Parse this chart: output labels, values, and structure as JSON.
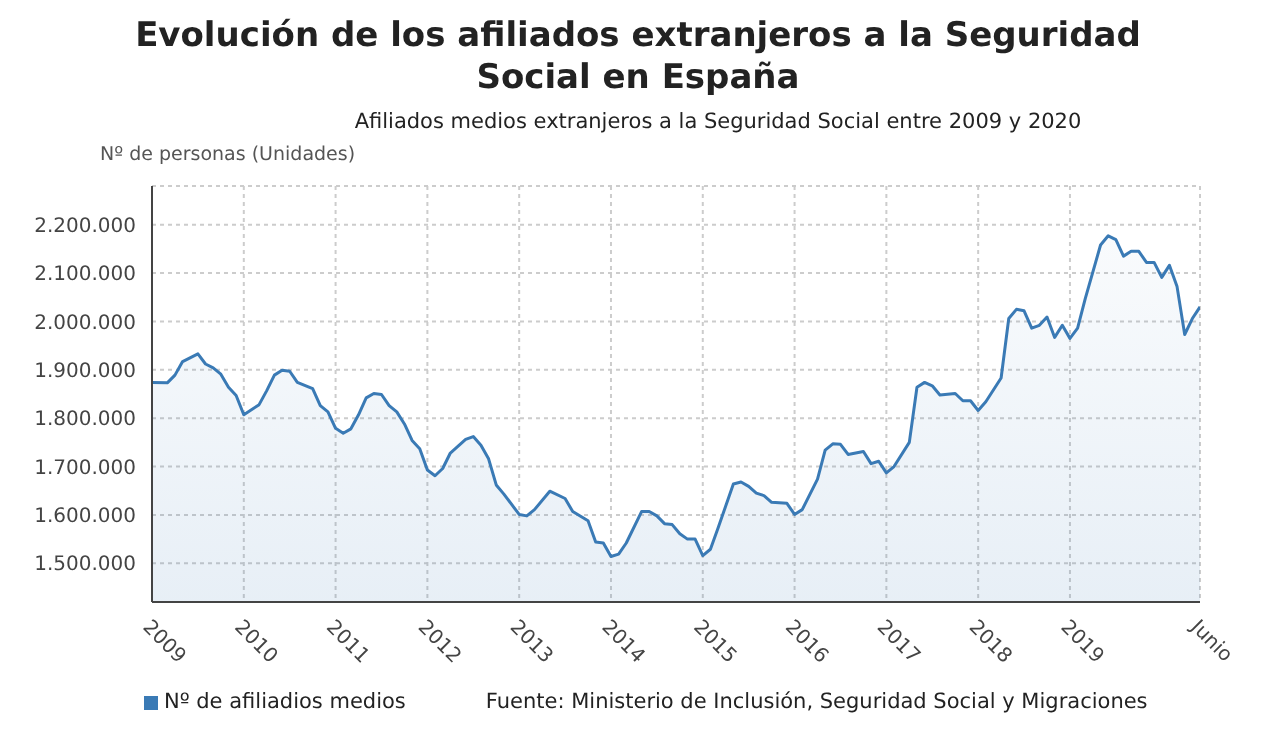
{
  "chart_data": {
    "type": "area",
    "title": "Evolución de los afiliados extranjeros a la Seguridad Social en España",
    "subtitle": "Afiliados medios extranjeros a la Seguridad Social entre 2009 y 2020",
    "ylabel": "Nº de personas (Unidades)",
    "annotations": [
      "Fuente: Ministerio de Inclusión, Seguridad Social y Migraciones"
    ],
    "xlim": [
      "2009-01",
      "2020-06"
    ],
    "xticks": [
      {
        "value": "2009",
        "label": "2009"
      },
      {
        "value": "2010",
        "label": "2010"
      },
      {
        "value": "2011",
        "label": "2011"
      },
      {
        "value": "2012",
        "label": "2012"
      },
      {
        "value": "2013",
        "label": "2013"
      },
      {
        "value": "2014",
        "label": "2014"
      },
      {
        "value": "2015",
        "label": "2015"
      },
      {
        "value": "2016",
        "label": "2016"
      },
      {
        "value": "2017",
        "label": "2017"
      },
      {
        "value": "2018",
        "label": "2018"
      },
      {
        "value": "2019",
        "label": "2019"
      },
      {
        "value": "2020-06",
        "label": "Junio"
      }
    ],
    "ylim": [
      1420000,
      2280000
    ],
    "yticks": [
      {
        "value": 1500000,
        "label": "1.500.000"
      },
      {
        "value": 1600000,
        "label": "1.600.000"
      },
      {
        "value": 1700000,
        "label": "1.700.000"
      },
      {
        "value": 1800000,
        "label": "1.800.000"
      },
      {
        "value": 1900000,
        "label": "1.900.000"
      },
      {
        "value": 2000000,
        "label": "2.000.000"
      },
      {
        "value": 2100000,
        "label": "2.100.000"
      },
      {
        "value": 2200000,
        "label": "2.200.000"
      }
    ],
    "grid": true,
    "legend": "bottom left",
    "marker": "none",
    "x": [
      "2009-01",
      "2009-03",
      "2009-04",
      "2009-05",
      "2009-07",
      "2009-08",
      "2009-09",
      "2009-10",
      "2009-11",
      "2009-12",
      "2010-01",
      "2010-03",
      "2010-04",
      "2010-05",
      "2010-06",
      "2010-07",
      "2010-08",
      "2010-10",
      "2010-11",
      "2010-12",
      "2011-01",
      "2011-02",
      "2011-03",
      "2011-04",
      "2011-05",
      "2011-06",
      "2011-07",
      "2011-08",
      "2011-09",
      "2011-10",
      "2011-11",
      "2011-12",
      "2012-01",
      "2012-02",
      "2012-03",
      "2012-04",
      "2012-06",
      "2012-07",
      "2012-08",
      "2012-09",
      "2012-10",
      "2012-11",
      "2013-01",
      "2013-02",
      "2013-03",
      "2013-05",
      "2013-07",
      "2013-08",
      "2013-10",
      "2013-11",
      "2013-12",
      "2014-01",
      "2014-02",
      "2014-03",
      "2014-05",
      "2014-06",
      "2014-07",
      "2014-08",
      "2014-09",
      "2014-10",
      "2014-11",
      "2014-12",
      "2015-01",
      "2015-02",
      "2015-03",
      "2015-05",
      "2015-06",
      "2015-07",
      "2015-08",
      "2015-09",
      "2015-10",
      "2015-12",
      "2016-01",
      "2016-02",
      "2016-04",
      "2016-05",
      "2016-06",
      "2016-07",
      "2016-08",
      "2016-10",
      "2016-11",
      "2016-12",
      "2017-01",
      "2017-02",
      "2017-04",
      "2017-05",
      "2017-06",
      "2017-07",
      "2017-08",
      "2017-10",
      "2017-11",
      "2017-12",
      "2018-01",
      "2018-02",
      "2018-04",
      "2018-05",
      "2018-06",
      "2018-07",
      "2018-08",
      "2018-09",
      "2018-10",
      "2018-11",
      "2018-12",
      "2019-01",
      "2019-02",
      "2019-03",
      "2019-05",
      "2019-06",
      "2019-07",
      "2019-08",
      "2019-09",
      "2019-10",
      "2019-11",
      "2019-12",
      "2020-01",
      "2020-02",
      "2020-03",
      "2020-04",
      "2020-05",
      "2020-06"
    ],
    "series": [
      {
        "name": "Nº de afiliadios medios",
        "color": "#3a7ab5",
        "values": [
          1874000,
          1873000,
          1889000,
          1917000,
          1933000,
          1912000,
          1904000,
          1891000,
          1864000,
          1847000,
          1807000,
          1828000,
          1857000,
          1889000,
          1899000,
          1897000,
          1874000,
          1861000,
          1826000,
          1813000,
          1779000,
          1769000,
          1778000,
          1807000,
          1842000,
          1851000,
          1849000,
          1826000,
          1813000,
          1788000,
          1754000,
          1737000,
          1693000,
          1681000,
          1696000,
          1728000,
          1756000,
          1762000,
          1744000,
          1716000,
          1662000,
          1643000,
          1601000,
          1598000,
          1611000,
          1649000,
          1634000,
          1607000,
          1588000,
          1544000,
          1542000,
          1514000,
          1519000,
          1542000,
          1607000,
          1607000,
          1598000,
          1582000,
          1580000,
          1561000,
          1550000,
          1550000,
          1516000,
          1529000,
          1573000,
          1664000,
          1668000,
          1659000,
          1645000,
          1640000,
          1626000,
          1624000,
          1601000,
          1611000,
          1674000,
          1734000,
          1747000,
          1746000,
          1725000,
          1731000,
          1706000,
          1711000,
          1687000,
          1700000,
          1750000,
          1864000,
          1874000,
          1867000,
          1848000,
          1851000,
          1836000,
          1836000,
          1816000,
          1834000,
          1883000,
          2006000,
          2025000,
          2022000,
          1986000,
          1992000,
          2009000,
          1967000,
          1992000,
          1965000,
          1986000,
          2047000,
          2158000,
          2177000,
          2169000,
          2135000,
          2145000,
          2145000,
          2122000,
          2122000,
          2091000,
          2116000,
          2072000,
          1973000,
          2006000,
          2030000
        ]
      }
    ]
  }
}
